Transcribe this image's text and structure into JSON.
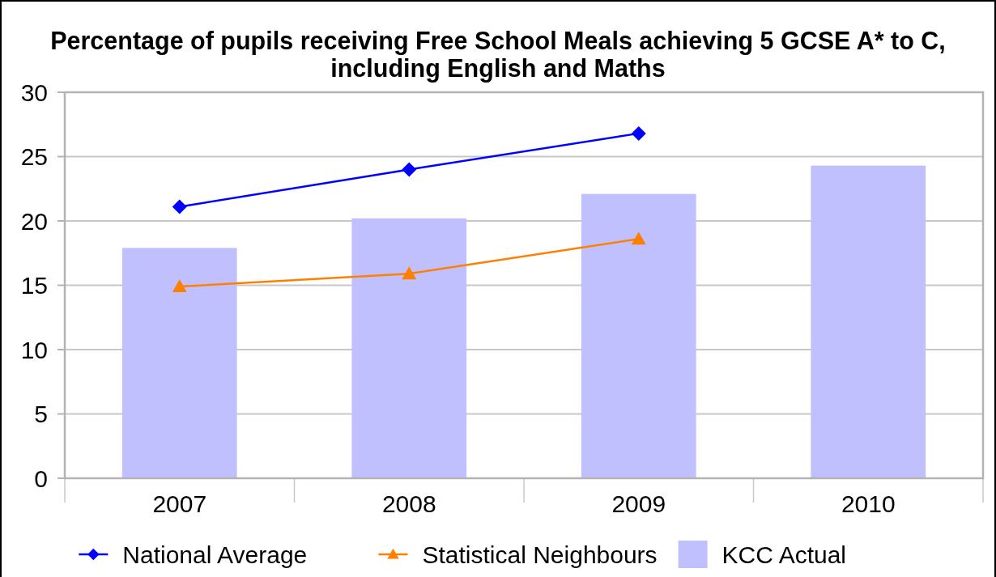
{
  "chart_data": {
    "type": "bar",
    "title": "Percentage of pupils receiving Free School Meals achieving 5 GCSE A* to C, including English and Maths",
    "categories": [
      "2007",
      "2008",
      "2009",
      "2010"
    ],
    "series": [
      {
        "name": "National Average",
        "type": "line",
        "color": "#0000ff",
        "marker": "diamond",
        "values": [
          21.1,
          24.0,
          26.8,
          null
        ]
      },
      {
        "name": "Statistical Neighbours",
        "type": "line",
        "color": "#ff8000",
        "marker": "triangle",
        "values": [
          14.9,
          15.9,
          18.6,
          null
        ]
      },
      {
        "name": "KCC Actual",
        "color": "#c0c0ff",
        "values": [
          17.9,
          20.2,
          22.1,
          24.3
        ]
      }
    ],
    "ylim": [
      0,
      30
    ],
    "yticks": [
      0,
      5,
      10,
      15,
      20,
      25,
      30
    ],
    "grid": "y",
    "legend": "bottom"
  }
}
